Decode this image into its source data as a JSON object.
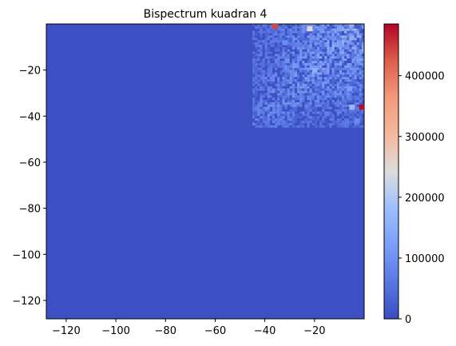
{
  "chart_data": {
    "type": "heatmap",
    "title": "Bispectrum kuadran 4",
    "xlabel": "",
    "ylabel": "",
    "xlim": [
      -128,
      0
    ],
    "ylim": [
      -128,
      0
    ],
    "x_ticks": [
      -120,
      -100,
      -80,
      -60,
      -40,
      -20
    ],
    "x_tick_labels": [
      "−120",
      "−100",
      "−80",
      "−60",
      "−40",
      "−20"
    ],
    "y_ticks": [
      -20,
      -40,
      -60,
      -80,
      -100,
      -120
    ],
    "y_tick_labels": [
      "−20",
      "−40",
      "−60",
      "−80",
      "−100",
      "−120"
    ],
    "colormap": "coolwarm",
    "colorbar": {
      "range": [
        0,
        485000
      ],
      "ticks": [
        0,
        100000,
        200000,
        300000,
        400000
      ],
      "tick_labels": [
        "0",
        "100000",
        "200000",
        "300000",
        "400000"
      ]
    },
    "background_value": 5000,
    "hotspots": [
      {
        "x": -36,
        "y": -1,
        "value": 440000
      },
      {
        "x": -22,
        "y": -2,
        "value": 250000
      },
      {
        "x": -20,
        "y": -20,
        "value": 150000
      },
      {
        "x": -28,
        "y": -18,
        "value": 110000
      },
      {
        "x": -10,
        "y": -2,
        "value": 130000
      },
      {
        "x": -6,
        "y": -28,
        "value": 120000
      },
      {
        "x": -5,
        "y": -36,
        "value": 170000
      },
      {
        "x": -1,
        "y": -36,
        "value": 480000
      },
      {
        "x": -3,
        "y": -42,
        "value": 90000
      },
      {
        "x": -14,
        "y": -12,
        "value": 120000
      },
      {
        "x": -32,
        "y": -8,
        "value": 95000
      }
    ]
  },
  "colors": {
    "low": "#3b4cc0",
    "mid": "#dddddd",
    "high": "#b40426"
  }
}
